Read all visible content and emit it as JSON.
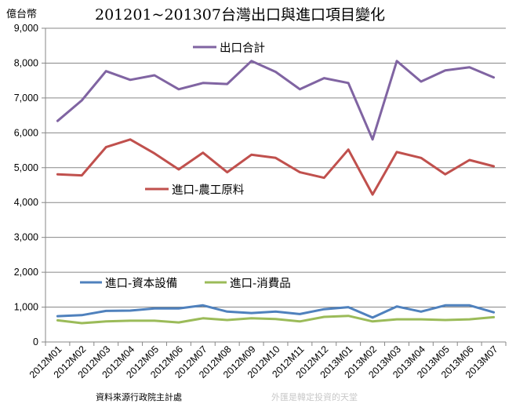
{
  "chart_data": {
    "type": "line",
    "title": "201201~201307台灣出口與進口項目變化",
    "unit_label": "億台幣",
    "ylim": [
      0,
      9000
    ],
    "y_ticks": [
      "0",
      "1,000",
      "2,000",
      "3,000",
      "4,000",
      "5,000",
      "6,000",
      "7,000",
      "8,000",
      "9,000"
    ],
    "y_tick_values": [
      0,
      1000,
      2000,
      3000,
      4000,
      5000,
      6000,
      7000,
      8000,
      9000
    ],
    "grid": true,
    "categories": [
      "2012M01",
      "2012M02",
      "2012M03",
      "2012M04",
      "2012M05",
      "2012M06",
      "2012M07",
      "2012M08",
      "2012M09",
      "2012M10",
      "2012M11",
      "2012M12",
      "2013M01",
      "2013M02",
      "2013M03",
      "2013M04",
      "2013M05",
      "2013M06",
      "2013M07"
    ],
    "series": [
      {
        "name": "出口合計",
        "color": "#8064a2",
        "values": [
          6340,
          6930,
          7770,
          7520,
          7650,
          7250,
          7430,
          7400,
          8060,
          7750,
          7250,
          7570,
          7430,
          5810,
          8060,
          7470,
          7790,
          7880,
          7590
        ]
      },
      {
        "name": "進口-農工原料",
        "color": "#c0504d",
        "values": [
          4810,
          4780,
          5590,
          5810,
          5410,
          4950,
          5430,
          4870,
          5370,
          5280,
          4870,
          4710,
          5520,
          4230,
          5450,
          5280,
          4810,
          5220,
          5040
        ]
      },
      {
        "name": "進口-資本設備",
        "color": "#4f81bd",
        "values": [
          740,
          770,
          890,
          900,
          960,
          960,
          1050,
          870,
          830,
          870,
          800,
          940,
          1000,
          700,
          1020,
          870,
          1050,
          1050,
          850
        ]
      },
      {
        "name": "進口-消費品",
        "color": "#9bbb59",
        "values": [
          620,
          540,
          590,
          610,
          610,
          560,
          680,
          630,
          680,
          660,
          590,
          720,
          750,
          590,
          650,
          650,
          630,
          650,
          710
        ]
      }
    ],
    "source_note": "資料來源行政院主計處",
    "watermark": "外匯是韓定投資的天堂"
  }
}
